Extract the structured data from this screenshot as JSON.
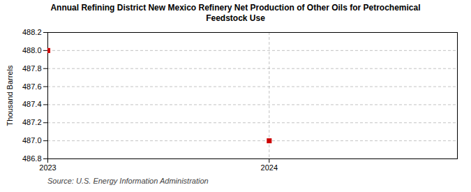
{
  "chart_data": {
    "type": "scatter",
    "title": "Annual Refining District New Mexico Refinery Net Production of Other Oils for Petrochemical\nFeedstock Use",
    "ylabel": "Thousand Barrels",
    "source": "Source: U.S. Energy Information Administration",
    "x": [
      2023,
      2024
    ],
    "values": [
      488.0,
      487.0
    ],
    "color": "#cc0000",
    "marker": "square",
    "xlim": [
      2023.0,
      2024.85
    ],
    "xticks": [
      2023,
      2024
    ],
    "ylim": [
      486.8,
      488.2
    ],
    "yticks": [
      486.8,
      {
        "value": 487.0,
        "label": "487.0"
      },
      487.2,
      487.4,
      487.6,
      487.8,
      {
        "value": 488.0,
        "label": "488.0"
      },
      488.2
    ],
    "grid": true
  }
}
